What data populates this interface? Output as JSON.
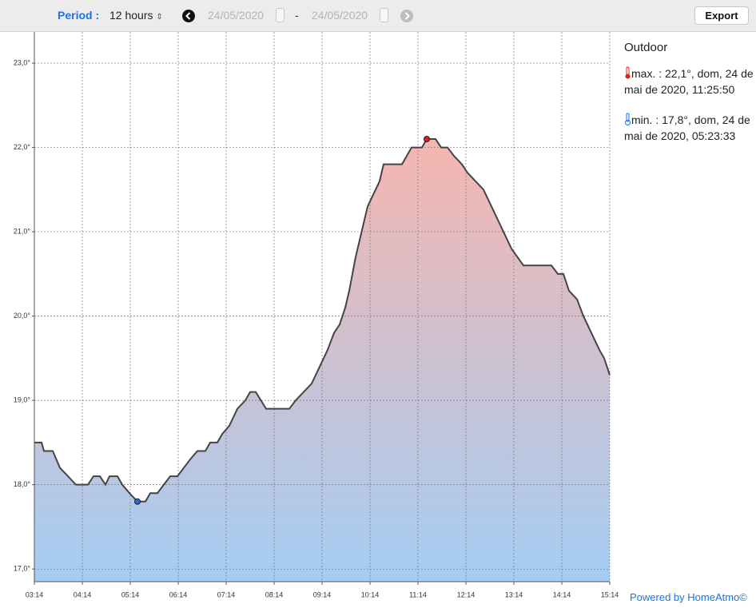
{
  "toolbar": {
    "period_label": "Period :",
    "period_value": "12 hours",
    "date_from": "24/05/2020",
    "separator": "-",
    "date_to": "24/05/2020",
    "export": "Export"
  },
  "panel": {
    "title": "Outdoor",
    "max": "max. : 22,1°, dom, 24 de mai de 2020, 11:25:50",
    "min": "min. : 17,8°, dom, 24 de mai de 2020, 05:23:33"
  },
  "footer": "Powered by HomeAtmo©",
  "chart_data": {
    "type": "area",
    "x": [
      "03:14",
      "03:23",
      "03:26",
      "03:37",
      "03:46",
      "03:56",
      "04:06",
      "04:21",
      "04:28",
      "04:36",
      "04:43",
      "04:48",
      "04:58",
      "05:04",
      "05:13",
      "05:23",
      "05:33",
      "05:39",
      "05:48",
      "05:56",
      "06:04",
      "06:13",
      "06:21",
      "06:29",
      "06:38",
      "06:48",
      "06:54",
      "07:03",
      "07:09",
      "07:18",
      "07:28",
      "07:38",
      "07:44",
      "07:51",
      "08:04",
      "08:13",
      "08:33",
      "08:41",
      "08:51",
      "09:01",
      "09:11",
      "09:21",
      "09:29",
      "09:36",
      "09:43",
      "09:48",
      "09:56",
      "10:11",
      "10:26",
      "10:31",
      "10:54",
      "11:06",
      "11:19",
      "11:25",
      "11:36",
      "11:43",
      "11:51",
      "11:59",
      "12:09",
      "12:16",
      "12:26",
      "12:36",
      "12:46",
      "12:56",
      "13:11",
      "13:26",
      "14:01",
      "14:09",
      "14:16",
      "14:23",
      "14:33",
      "14:41",
      "14:51",
      "15:01",
      "15:07",
      "15:14"
    ],
    "series": [
      {
        "name": "Outdoor",
        "color": "#444444",
        "values": [
          18.5,
          18.5,
          18.4,
          18.4,
          18.2,
          18.1,
          18.0,
          18.0,
          18.1,
          18.1,
          18.0,
          18.1,
          18.1,
          18.0,
          17.9,
          17.8,
          17.8,
          17.9,
          17.9,
          18.0,
          18.1,
          18.1,
          18.2,
          18.3,
          18.4,
          18.4,
          18.5,
          18.5,
          18.6,
          18.7,
          18.9,
          19.0,
          19.1,
          19.1,
          18.9,
          18.9,
          18.9,
          19.0,
          19.1,
          19.2,
          19.4,
          19.6,
          19.8,
          19.9,
          20.1,
          20.3,
          20.7,
          21.3,
          21.6,
          21.8,
          21.8,
          22.0,
          22.0,
          22.1,
          22.1,
          22.0,
          22.0,
          21.9,
          21.8,
          21.7,
          21.6,
          21.5,
          21.3,
          21.1,
          20.8,
          20.6,
          20.6,
          20.5,
          20.5,
          20.3,
          20.2,
          20.0,
          19.8,
          19.6,
          19.5,
          19.3
        ]
      }
    ],
    "fill_colors": [
      "#f6b6b0",
      "#a4cdf3"
    ],
    "max_color": "#e02020",
    "min_color": "#1e6fe0",
    "xlim": [
      "03:14",
      "15:14"
    ],
    "xticks": [
      "03:14",
      "04:14",
      "05:14",
      "06:14",
      "07:14",
      "08:14",
      "09:14",
      "10:14",
      "11:14",
      "12:14",
      "13:14",
      "14:14",
      "15:14"
    ],
    "ylim": [
      16.85,
      23.37
    ],
    "yticks": [
      {
        "value": 17,
        "label": "17,0°"
      },
      {
        "value": 18,
        "label": "18,0°"
      },
      {
        "value": 19,
        "label": "19,0°"
      },
      {
        "value": 20,
        "label": "20,0°"
      },
      {
        "value": 21,
        "label": "21,0°"
      },
      {
        "value": 22,
        "label": "22,0°"
      },
      {
        "value": 23,
        "label": "23,0°"
      }
    ],
    "grid": true
  }
}
